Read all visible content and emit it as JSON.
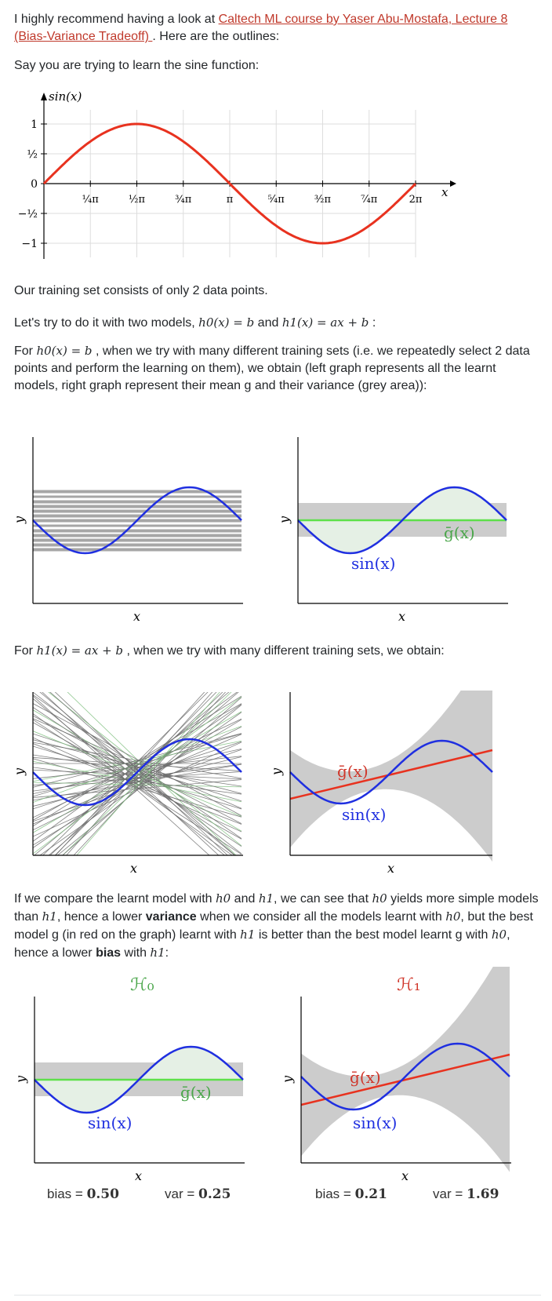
{
  "intro": {
    "prefix": "I highly recommend having a look at ",
    "link_text": "Caltech ML course by Yaser Abu-Mostafa, Lecture 8 (Bias-Variance Tradeoff) ",
    "suffix": ". Here are the outlines:"
  },
  "sine_text": "Say you are trying to learn the sine function:",
  "sine_plot": {
    "ylabel": "sin(x)",
    "xlabel": "x",
    "yticks": [
      "1",
      "½",
      "0",
      "−½",
      "−1"
    ],
    "xticks": [
      "¼π",
      "½π",
      "¾π",
      "π",
      "⁵⁄₄π",
      "³⁄₂π",
      "⁷⁄₄π",
      "2π"
    ],
    "line_color": "#e8321f"
  },
  "training_text": "Our training set consists of only 2 data points.",
  "models_line": {
    "prefix": "Let's try to do it with two models, ",
    "h0": "h0(x) = b",
    "mid": " and ",
    "h1": "h1(x) = ax + b",
    "suffix": " :"
  },
  "h0_para": {
    "prefix": "For ",
    "h0": "h0(x) = b",
    "text": " , when we try with many different training sets (i.e. we repeatedly select 2 data points and perform the learning on them), we obtain (left graph represents all the learnt models, right graph represent their mean g and their variance (grey area)):"
  },
  "h1_para": {
    "prefix": "For ",
    "h1": "h1(x) = ax + b",
    "text": " , when we try with many different training sets, we obtain:"
  },
  "compare_para": {
    "t1": "If we compare the learnt model with ",
    "h0a": "h0",
    "t2": " and ",
    "h1a": "h1",
    "t3": ", we can see that ",
    "h0b": "h0",
    "t4": " yields more simple models than ",
    "h1b": "h1",
    "t5": ", hence a lower ",
    "variance": "variance",
    "t6": " when we consider all the models learnt with ",
    "h0c": "h0",
    "t7": ", but the best model g (in red on the graph) learnt with ",
    "h1c": "h1",
    "t8": " is better than the best model learnt g with ",
    "h0d": "h0",
    "t9": ", hence a lower ",
    "bias": "bias",
    "t10": " with ",
    "h1d": "h1",
    "t11": ":"
  },
  "plots": {
    "axis_x": "x",
    "axis_y": "y",
    "gbar": "ḡ(x)",
    "sin": "sin(x)",
    "H0": "ℋ₀",
    "H1": "ℋ₁"
  },
  "stats": {
    "h0": {
      "bias_label": "bias = ",
      "bias": "0.50",
      "var_label": "var = ",
      "var": "0.25"
    },
    "h1": {
      "bias_label": "bias = ",
      "bias": "0.21",
      "var_label": "var = ",
      "var": "1.69"
    }
  },
  "colors": {
    "sin": "#1f2fe0",
    "mean_h0": "#5ee04a",
    "mean_h1": "#e8321f",
    "variance": "#cccccc",
    "link": "#c0392b",
    "g_h0_label": "#4aa64a",
    "g_h1_label": "#d0362a"
  }
}
